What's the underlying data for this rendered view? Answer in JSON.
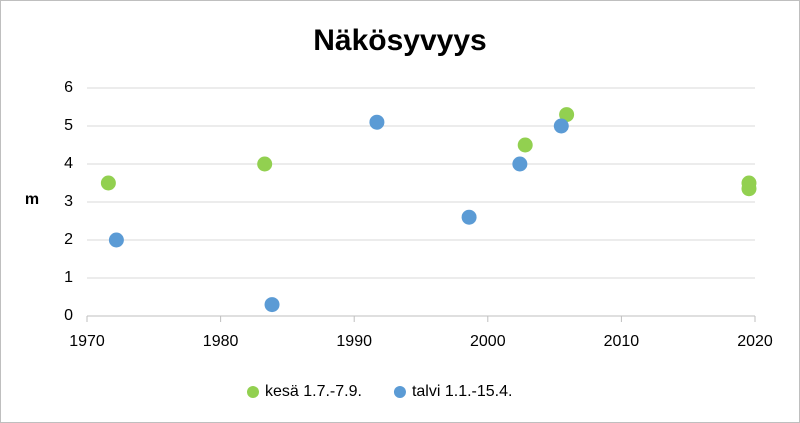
{
  "chart_data": {
    "type": "scatter",
    "title": "Näkösyvyys",
    "y_label": "m",
    "series": [
      {
        "name": "kesä 1.7.-7.9.",
        "color": "#92d050",
        "x": [
          1971.6,
          1983.3,
          2002.8,
          2005.9,
          2019.55,
          2019.55
        ],
        "values": [
          3.5,
          4.0,
          4.5,
          5.3,
          3.5,
          3.35
        ]
      },
      {
        "name": "talvi 1.1.-15.4.",
        "color": "#5b9bd5",
        "x": [
          1972.2,
          1983.85,
          1991.7,
          1998.6,
          2002.4,
          2005.5
        ],
        "values": [
          2.0,
          0.3,
          5.1,
          2.6,
          4.0,
          5.0
        ]
      }
    ],
    "xlim": [
      1970,
      2020
    ],
    "xticks": [
      1970,
      1980,
      1990,
      2000,
      2010,
      2020
    ],
    "ylim": [
      0,
      6
    ],
    "yticks": [
      0,
      1,
      2,
      3,
      4,
      5,
      6
    ],
    "grid": true,
    "legend": "bottom"
  }
}
